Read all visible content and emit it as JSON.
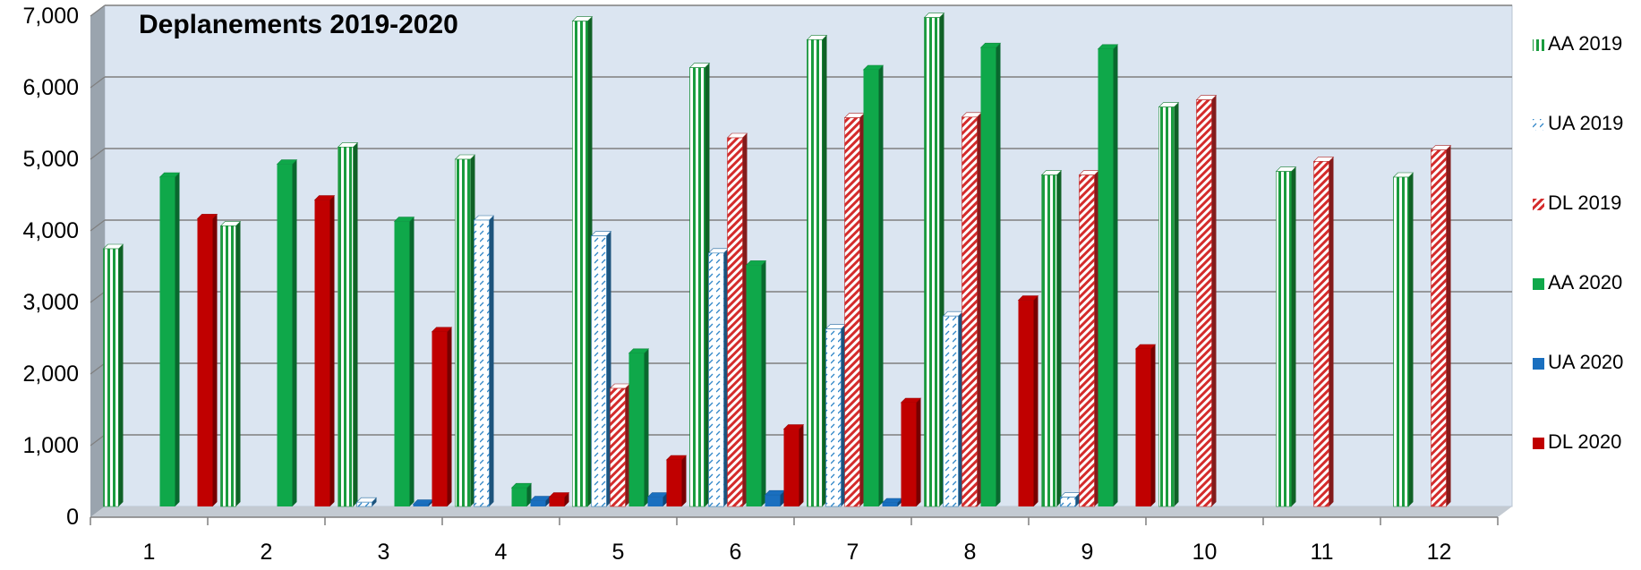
{
  "chart_data": {
    "type": "bar",
    "title": "Deplanements  2019-2020",
    "xlabel": "",
    "ylabel": "",
    "ylim": [
      0,
      7000
    ],
    "yticks": [
      "0",
      "1,000",
      "2,000",
      "3,000",
      "4,000",
      "5,000",
      "6,000",
      "7,000"
    ],
    "categories": [
      "1",
      "2",
      "3",
      "4",
      "5",
      "6",
      "7",
      "8",
      "9",
      "10",
      "11",
      "12"
    ],
    "grid": true,
    "legend_position": "right",
    "series": [
      {
        "name": "AA 2019",
        "color": "#1a9c3e",
        "pattern": "vertical-stripes",
        "values": [
          3600,
          3920,
          5020,
          4850,
          6780,
          6130,
          6520,
          6830,
          4630,
          5580,
          4680,
          4600
        ]
      },
      {
        "name": "UA 2019",
        "color": "#2f86c8",
        "pattern": "dotted",
        "values": [
          0,
          0,
          60,
          4000,
          3780,
          3540,
          2480,
          2660,
          130,
          0,
          0,
          0
        ]
      },
      {
        "name": "DL 2019",
        "color": "#d42b2b",
        "pattern": "diagonal-stripes",
        "values": [
          0,
          0,
          0,
          0,
          1650,
          5150,
          5430,
          5440,
          4630,
          5680,
          4820,
          4980
        ]
      },
      {
        "name": "AA 2020",
        "color": "#0fa84a",
        "pattern": "solid",
        "values": [
          4600,
          4780,
          3980,
          260,
          2140,
          3370,
          6100,
          6410,
          6390,
          0,
          0,
          0
        ]
      },
      {
        "name": "UA 2020",
        "color": "#1a6fbf",
        "pattern": "solid",
        "values": [
          0,
          0,
          30,
          80,
          130,
          160,
          50,
          0,
          0,
          0,
          0,
          0
        ]
      },
      {
        "name": "DL 2020",
        "color": "#c00000",
        "pattern": "solid",
        "values": [
          4020,
          4280,
          2440,
          130,
          650,
          1080,
          1450,
          2880,
          2200,
          0,
          0,
          0
        ]
      }
    ]
  }
}
